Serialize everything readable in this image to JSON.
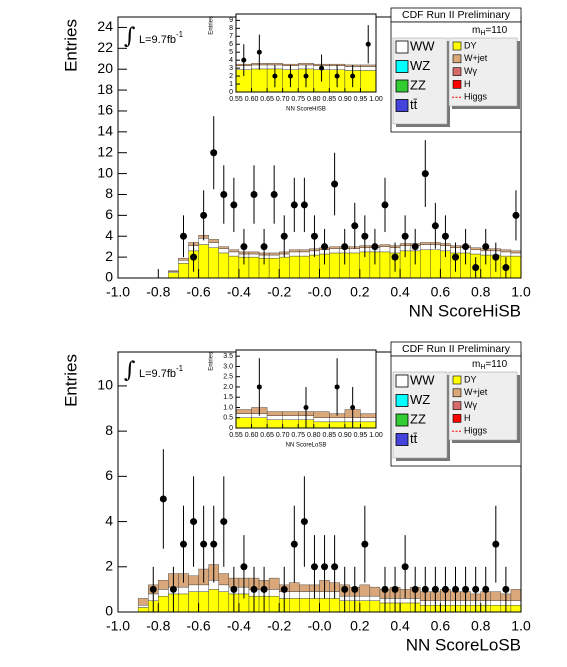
{
  "chart_data": [
    {
      "type": "histogram",
      "x_label": "NN ScoreHiSB",
      "y_label": "Entries",
      "xlim": [
        -1,
        1
      ],
      "ylim": [
        0,
        25
      ],
      "xticks": [
        {
          "value": -1,
          "label": "-1.0"
        },
        -0.8,
        -0.6,
        -0.4,
        -0.2,
        {
          "value": 0,
          "label": "-0.0"
        },
        0.2,
        0.4,
        0.6,
        0.8,
        {
          "value": 1,
          "label": "1.0"
        }
      ],
      "yticks": [
        0,
        2,
        4,
        6,
        8,
        10,
        12,
        14,
        16,
        18,
        20,
        22,
        24
      ],
      "bins": [
        -1,
        -0.95,
        -0.9,
        -0.85,
        -0.8,
        -0.75,
        -0.7,
        -0.65,
        -0.6,
        -0.55,
        -0.5,
        -0.45,
        -0.4,
        -0.35,
        -0.3,
        -0.25,
        -0.2,
        -0.15,
        -0.1,
        -0.05,
        0,
        0.05,
        0.1,
        0.15,
        0.2,
        0.25,
        0.3,
        0.35,
        0.4,
        0.45,
        0.5,
        0.55,
        0.6,
        0.65,
        0.7,
        0.75,
        0.8,
        0.85,
        0.9,
        0.95,
        1
      ],
      "legend_header": "CDF Run II Preliminary",
      "mass_label": {
        "m": "m",
        "sub": "H",
        "rest": "=110"
      },
      "lumi": {
        "integral": "∫",
        "text": "L=9.7fb",
        "sup": "-1"
      },
      "series": [
        {
          "name": "DY",
          "color": "#ffff00",
          "column": "right",
          "values": [
            0,
            0,
            0,
            0,
            0,
            0.5,
            1.4,
            2.6,
            3.2,
            2.9,
            2.4,
            2.1,
            2.0,
            2.0,
            1.9,
            1.9,
            2.0,
            2.1,
            2.1,
            2.2,
            2.3,
            2.4,
            2.4,
            2.4,
            2.5,
            2.5,
            2.5,
            2.4,
            2.6,
            2.6,
            2.7,
            2.7,
            2.6,
            2.4,
            2.4,
            2.3,
            2.2,
            2.2,
            2.1,
            2.1
          ]
        },
        {
          "name": "WW",
          "color": "#ffffff",
          "column": "left",
          "values": [
            0,
            0,
            0,
            0,
            0,
            0.1,
            0.3,
            0.5,
            0.6,
            0.5,
            0.4,
            0.4,
            0.3,
            0.3,
            0.3,
            0.3,
            0.3,
            0.4,
            0.4,
            0.4,
            0.4,
            0.4,
            0.4,
            0.4,
            0.4,
            0.4,
            0.5,
            0.5,
            0.5,
            0.5,
            0.5,
            0.5,
            0.5,
            0.5,
            0.5,
            0.4,
            0.4,
            0.4,
            0.4,
            0.3
          ]
        },
        {
          "name": "W+jet",
          "color": "#d9a77a",
          "column": "right",
          "values": [
            0,
            0,
            0,
            0,
            0,
            0.1,
            0.2,
            0.3,
            0.3,
            0.3,
            0.2,
            0.2,
            0.2,
            0.2,
            0.2,
            0.2,
            0.2,
            0.2,
            0.2,
            0.2,
            0.2,
            0.2,
            0.2,
            0.2,
            0.2,
            0.2,
            0.2,
            0.2,
            0.2,
            0.2,
            0.2,
            0.2,
            0.2,
            0.2,
            0.2,
            0.2,
            0.2,
            0.2,
            0.2,
            0.2
          ]
        },
        {
          "name": "WZ",
          "color": "#00ffff",
          "column": "left"
        },
        {
          "name": "ZZ",
          "color": "#33cc33",
          "column": "left"
        },
        {
          "name": "tt̄",
          "color": "#4444dd",
          "column": "left"
        },
        {
          "name": "Wγ",
          "color": "#d46a6a",
          "column": "right"
        },
        {
          "name": "H",
          "color": "#ff0000",
          "column": "right"
        },
        {
          "name": "Higgs",
          "color": "#ff0000",
          "column": "right",
          "style": "dashed"
        }
      ],
      "points": {
        "color": "#000000",
        "values": [
          null,
          null,
          null,
          null,
          null,
          null,
          4,
          2,
          6,
          12,
          8,
          7,
          3,
          8,
          3,
          8,
          4,
          7,
          7,
          4,
          3,
          9,
          3,
          5,
          4,
          3,
          7,
          2,
          4,
          3,
          10,
          5,
          4,
          2,
          3,
          1,
          3,
          2,
          1,
          6
        ],
        "errors": [
          null,
          null,
          null,
          null,
          null,
          null,
          2,
          1.4,
          2.4,
          3.5,
          2.8,
          2.6,
          1.7,
          2.8,
          1.7,
          2.8,
          2,
          2.6,
          2.6,
          2,
          1.7,
          3,
          1.7,
          2.2,
          2,
          1.7,
          2.6,
          1.4,
          2,
          1.7,
          3.2,
          2.2,
          2,
          1.4,
          1.7,
          1,
          1.7,
          1.4,
          1,
          2.4
        ]
      },
      "inset": {
        "type": "histogram",
        "x_label": "NN ScoreHiSB",
        "y_label": "Entries",
        "xlim": [
          0.55,
          1
        ],
        "ylim": [
          0,
          9.8
        ],
        "xticks": [
          0.55,
          {
            "value": 0.6,
            "label": "0.60"
          },
          0.65,
          {
            "value": 0.7,
            "label": "0.70"
          },
          0.75,
          {
            "value": 0.8,
            "label": "0.80"
          },
          0.85,
          {
            "value": 0.9,
            "label": "0.90"
          },
          0.95,
          {
            "value": 1,
            "label": "1.00"
          }
        ],
        "yticks": [
          0,
          1,
          2,
          3,
          4,
          5,
          6,
          7,
          8,
          9
        ],
        "bins": [
          0.55,
          0.6,
          0.65,
          0.7,
          0.75,
          0.8,
          0.85,
          0.9,
          0.95,
          1
        ],
        "series": [
          {
            "color": "#ffff00",
            "values": [
              2.8,
              2.9,
              2.9,
              2.8,
              2.9,
              2.8,
              2.8,
              2.7,
              2.7
            ]
          },
          {
            "color": "#ffffff",
            "values": [
              0.5,
              0.5,
              0.5,
              0.5,
              0.5,
              0.5,
              0.5,
              0.5,
              0.5
            ]
          },
          {
            "color": "#d9a77a",
            "values": [
              0.2,
              0.2,
              0.2,
              0.2,
              0.2,
              0.2,
              0.2,
              0.2,
              0.2
            ]
          }
        ],
        "points": {
          "color": "#000000",
          "values": [
            4,
            5,
            2,
            2,
            2,
            3,
            2,
            2,
            6
          ],
          "errors": [
            2,
            2.2,
            1.4,
            1.4,
            1.4,
            1.7,
            1.4,
            1.4,
            2.4
          ]
        }
      }
    },
    {
      "type": "histogram",
      "x_label": "NN ScoreLoSB",
      "y_label": "Entries",
      "xlim": [
        -1,
        1
      ],
      "ylim": [
        0,
        11.5
      ],
      "xticks": [
        {
          "value": -1,
          "label": "-1.0"
        },
        -0.8,
        -0.6,
        -0.4,
        -0.2,
        {
          "value": 0,
          "label": "-0.0"
        },
        0.2,
        0.4,
        0.6,
        0.8,
        {
          "value": 1,
          "label": "1.0"
        }
      ],
      "yticks": [
        0,
        2,
        4,
        6,
        8,
        10
      ],
      "bins": [
        -1,
        -0.95,
        -0.9,
        -0.85,
        -0.8,
        -0.75,
        -0.7,
        -0.65,
        -0.6,
        -0.55,
        -0.5,
        -0.45,
        -0.4,
        -0.35,
        -0.3,
        -0.25,
        -0.2,
        -0.15,
        -0.1,
        -0.05,
        0,
        0.05,
        0.1,
        0.15,
        0.2,
        0.25,
        0.3,
        0.35,
        0.4,
        0.45,
        0.5,
        0.55,
        0.6,
        0.65,
        0.7,
        0.75,
        0.8,
        0.85,
        0.9,
        0.95,
        1
      ],
      "legend_header": "CDF Run II Preliminary",
      "mass_label": {
        "m": "m",
        "sub": "H",
        "rest": "=110"
      },
      "lumi": {
        "integral": "∫",
        "text": "L=9.7fb",
        "sup": "-1"
      },
      "series": [
        {
          "name": "DY",
          "color": "#ffff00",
          "column": "right",
          "values": [
            0,
            0,
            0.2,
            0.5,
            0.7,
            0.8,
            0.8,
            0.9,
            0.9,
            1.0,
            0.9,
            0.8,
            0.8,
            0.7,
            0.7,
            0.7,
            0.6,
            0.6,
            0.6,
            0.6,
            0.6,
            0.6,
            0.5,
            0.5,
            0.5,
            0.5,
            0.4,
            0.4,
            0.4,
            0.4,
            0.3,
            0.3,
            0.3,
            0.3,
            0.3,
            0.3,
            0.3,
            0.3,
            0.3,
            0.3
          ]
        },
        {
          "name": "WW",
          "color": "#ffffff",
          "column": "left",
          "values": [
            0,
            0,
            0.1,
            0.3,
            0.3,
            0.3,
            0.3,
            0.3,
            0.3,
            0.4,
            0.3,
            0.3,
            0.3,
            0.3,
            0.3,
            0.3,
            0.3,
            0.3,
            0.3,
            0.3,
            0.3,
            0.3,
            0.2,
            0.2,
            0.2,
            0.2,
            0.2,
            0.2,
            0.2,
            0.2,
            0.2,
            0.2,
            0.2,
            0.2,
            0.2,
            0.2,
            0.2,
            0.2,
            0.2,
            0.2
          ]
        },
        {
          "name": "W+jet",
          "color": "#d9a77a",
          "column": "right",
          "values": [
            0,
            0,
            0.3,
            0.4,
            0.4,
            0.6,
            0.6,
            0.4,
            0.7,
            0.7,
            0.5,
            0.4,
            0.4,
            0.5,
            0.4,
            0.5,
            0.3,
            0.4,
            0.3,
            0.3,
            0.5,
            0.4,
            0.5,
            0.4,
            0.5,
            0.4,
            0.4,
            0.5,
            0.4,
            0.5,
            0.4,
            0.4,
            0.5,
            0.4,
            0.4,
            0.3,
            0.4,
            0.4,
            0.3,
            0.5
          ]
        },
        {
          "name": "WZ",
          "color": "#00ffff",
          "column": "left"
        },
        {
          "name": "ZZ",
          "color": "#33cc33",
          "column": "left"
        },
        {
          "name": "tt̄",
          "color": "#4444dd",
          "column": "left"
        },
        {
          "name": "Wγ",
          "color": "#d46a6a",
          "column": "right"
        },
        {
          "name": "H",
          "color": "#ff0000",
          "column": "right"
        },
        {
          "name": "Higgs",
          "color": "#ff0000",
          "column": "right",
          "style": "dashed"
        }
      ],
      "points": {
        "color": "#000000",
        "values": [
          null,
          null,
          null,
          1,
          5,
          1,
          3,
          4,
          3,
          3,
          4,
          1,
          2,
          1,
          1,
          null,
          1,
          3,
          4,
          2,
          2,
          2,
          1,
          1,
          3,
          null,
          1,
          1,
          2,
          1,
          1,
          1,
          1,
          1,
          1,
          1,
          1,
          3,
          1,
          null
        ],
        "errors": [
          null,
          null,
          null,
          1,
          2.2,
          1,
          1.7,
          2,
          1.7,
          1.7,
          2,
          1,
          1.4,
          1,
          1,
          null,
          1,
          1.7,
          2,
          1.4,
          1.4,
          1.4,
          1,
          1,
          1.7,
          null,
          1,
          1,
          1.4,
          1,
          1,
          1,
          1,
          1,
          1,
          1,
          1,
          1.7,
          1,
          null
        ]
      },
      "inset": {
        "type": "histogram",
        "x_label": "NN ScoreLoSB",
        "y_label": "Entries",
        "xlim": [
          0.55,
          1
        ],
        "ylim": [
          0,
          3.8
        ],
        "xticks": [
          0.55,
          {
            "value": 0.6,
            "label": "0.60"
          },
          0.65,
          {
            "value": 0.7,
            "label": "0.70"
          },
          0.75,
          {
            "value": 0.8,
            "label": "0.80"
          },
          0.85,
          {
            "value": 0.9,
            "label": "0.90"
          },
          0.95,
          {
            "value": 1,
            "label": "1.00"
          }
        ],
        "yticks": [
          0,
          0.5,
          {
            "value": 1,
            "label": "1.0"
          },
          1.5,
          {
            "value": 2,
            "label": "2.0"
          },
          2.5,
          {
            "value": 3,
            "label": "3.0"
          },
          3.5
        ],
        "bins": [
          0.55,
          0.6,
          0.65,
          0.7,
          0.75,
          0.8,
          0.85,
          0.9,
          0.95,
          1
        ],
        "series": [
          {
            "color": "#ffff00",
            "values": [
              0.5,
              0.5,
              0.4,
              0.4,
              0.4,
              0.3,
              0.3,
              0.3,
              0.3
            ]
          },
          {
            "color": "#ffffff",
            "values": [
              0.2,
              0.2,
              0.2,
              0.2,
              0.2,
              0.2,
              0.2,
              0.2,
              0.2
            ]
          },
          {
            "color": "#d9a77a",
            "values": [
              0.2,
              0.3,
              0.2,
              0.2,
              0.2,
              0.3,
              0.2,
              0.4,
              0.2
            ]
          }
        ],
        "points": {
          "color": "#000000",
          "values": [
            null,
            2,
            null,
            null,
            1,
            null,
            2,
            1,
            null
          ],
          "errors": [
            null,
            1.4,
            null,
            null,
            1,
            null,
            1.4,
            1,
            null
          ]
        }
      }
    }
  ]
}
